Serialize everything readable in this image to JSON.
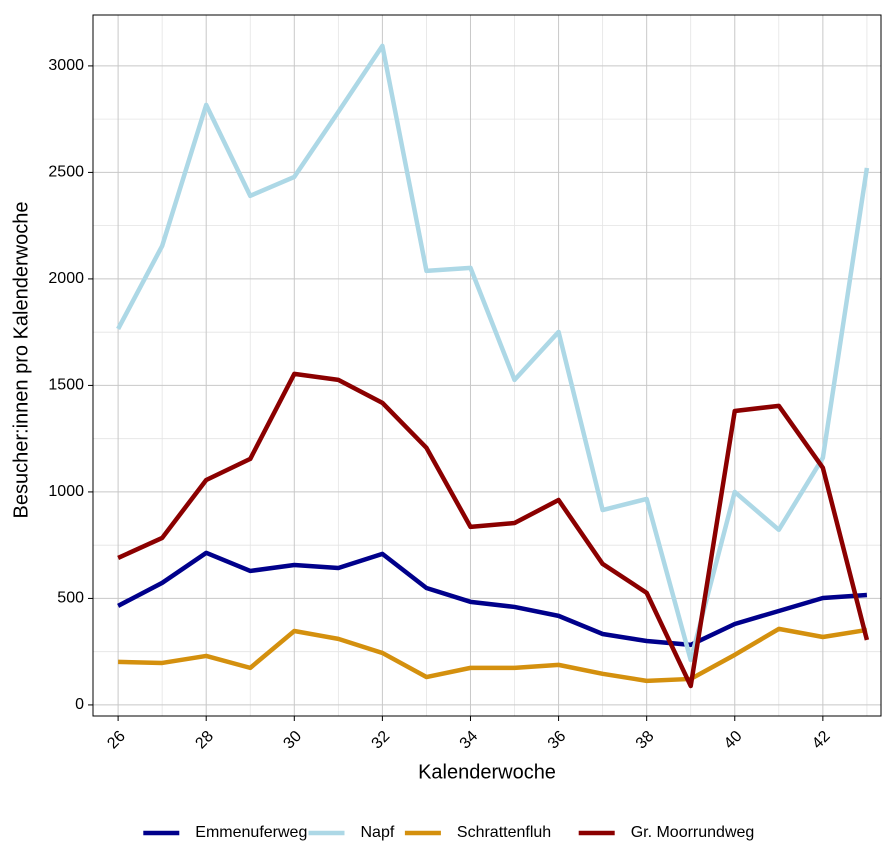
{
  "chart_data": {
    "type": "line",
    "x_label": "Kalenderwoche",
    "y_label": "Besucher:innen pro Kalenderwoche",
    "x": [
      26,
      27,
      28,
      29,
      30,
      31,
      32,
      33,
      34,
      35,
      36,
      37,
      38,
      39,
      40,
      41,
      42,
      43
    ],
    "series": [
      {
        "name": "Emmenuferweg",
        "color": "#00008b",
        "values": [
          465,
          573,
          714,
          629,
          657,
          643,
          709,
          549,
          484,
          460,
          418,
          333,
          300,
          282,
          380,
          441,
          502,
          516
        ]
      },
      {
        "name": "Napf",
        "color": "#add8e6",
        "values": [
          1765,
          2155,
          2817,
          2390,
          2479,
          2784,
          3094,
          2038,
          2052,
          1526,
          1751,
          915,
          967,
          211,
          1000,
          822,
          1160,
          2521
        ]
      },
      {
        "name": "Schrattenfluh",
        "color": "#d4900e",
        "values": [
          202,
          197,
          230,
          174,
          347,
          310,
          244,
          131,
          174,
          174,
          188,
          146,
          113,
          122,
          235,
          357,
          319,
          352
        ]
      },
      {
        "name": "Gr. Moorrundweg",
        "color": "#8b0000",
        "values": [
          690,
          784,
          1056,
          1155,
          1554,
          1526,
          1418,
          1207,
          836,
          854,
          962,
          662,
          526,
          89,
          1380,
          1404,
          1113,
          305
        ]
      }
    ],
    "xlim": [
      25.43,
      43.32
    ],
    "xticks": [
      26,
      28,
      30,
      32,
      34,
      36,
      38,
      40,
      42
    ],
    "ylim": [
      -52,
      3239
    ],
    "yticks": [
      0,
      500,
      1000,
      1500,
      2000,
      2500,
      3000
    ],
    "grid": true,
    "legend": "bottom"
  }
}
